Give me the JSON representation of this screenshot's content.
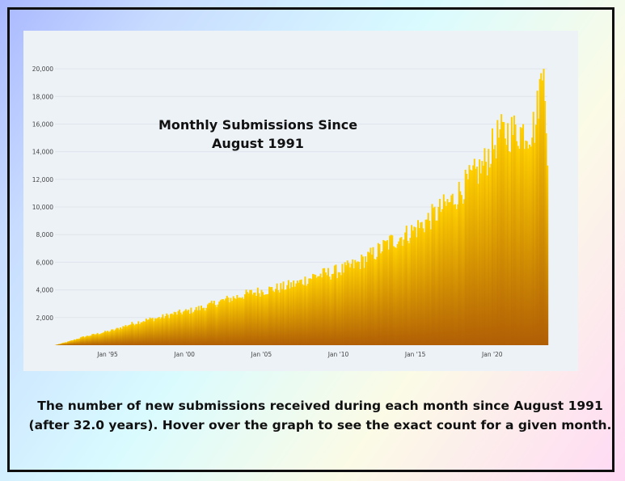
{
  "chart_data": {
    "type": "bar",
    "title": "Monthly Submissions Since August 1991",
    "xlabel": "",
    "ylabel": "",
    "ylim": [
      0,
      21000
    ],
    "yticks": [
      2000,
      4000,
      6000,
      8000,
      10000,
      12000,
      14000,
      16000,
      18000,
      20000
    ],
    "ytick_labels": [
      "2,000",
      "4,000",
      "6,000",
      "8,000",
      "10,000",
      "12,000",
      "14,000",
      "16,000",
      "18,000",
      "20,000"
    ],
    "xtick_labels": [
      "Jan '95",
      "Jan '00",
      "Jan '05",
      "Jan '10",
      "Jan '15",
      "Jan '20"
    ],
    "xtick_dates": [
      "1995-01",
      "2000-01",
      "2005-01",
      "2010-01",
      "2015-01",
      "2020-01"
    ],
    "x_range": [
      "1991-08",
      "2023-08"
    ],
    "grid": true,
    "colors": {
      "top": "#ffd000",
      "bottom": "#b05e05",
      "background": "#edf2f7"
    },
    "series": [
      {
        "anchors": [
          [
            "1991-08",
            10
          ],
          [
            "1992-06",
            250
          ],
          [
            "1993-06",
            600
          ],
          [
            "1994-06",
            850
          ],
          [
            "1995-06",
            1100
          ],
          [
            "1996-06",
            1500
          ],
          [
            "1997-06",
            1800
          ],
          [
            "1998-06",
            2000
          ],
          [
            "1999-06",
            2300
          ],
          [
            "2000-06",
            2500
          ],
          [
            "2001-06",
            2800
          ],
          [
            "2002-06",
            3200
          ],
          [
            "2003-06",
            3500
          ],
          [
            "2004-06",
            3800
          ],
          [
            "2005-06",
            4000
          ],
          [
            "2006-06",
            4200
          ],
          [
            "2007-06",
            4500
          ],
          [
            "2008-06",
            5000
          ],
          [
            "2009-06",
            5200
          ],
          [
            "2010-06",
            5500
          ],
          [
            "2011-06",
            6000
          ],
          [
            "2012-06",
            6700
          ],
          [
            "2013-06",
            7500
          ],
          [
            "2014-06",
            8000
          ],
          [
            "2015-06",
            8700
          ],
          [
            "2016-06",
            9600
          ],
          [
            "2017-06",
            10500
          ],
          [
            "2018-06",
            11800
          ],
          [
            "2019-06",
            13000
          ],
          [
            "2020-06",
            15200
          ],
          [
            "2021-06",
            15500
          ],
          [
            "2022-06",
            15500
          ],
          [
            "2022-11",
            16000
          ],
          [
            "2023-01",
            18000
          ],
          [
            "2023-05",
            20000
          ],
          [
            "2023-08",
            13000
          ]
        ]
      }
    ]
  },
  "caption": "The number of new submissions received during each month since August 1991 (after 32.0 years). Hover over the graph to see the exact count for a given month."
}
